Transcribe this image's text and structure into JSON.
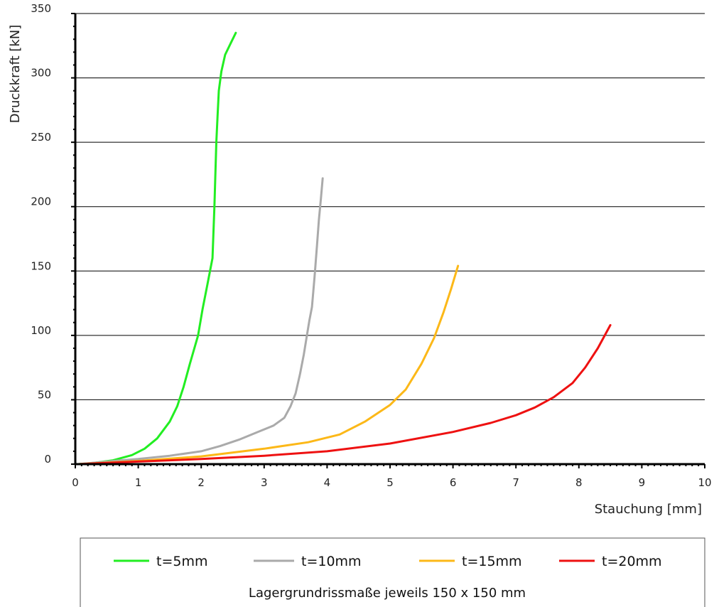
{
  "chart_data": {
    "type": "line",
    "xlabel": "Stauchung [mm]",
    "ylabel": "Druckkraft [kN]",
    "xlim": [
      0,
      10
    ],
    "ylim": [
      0,
      350
    ],
    "x_ticks": [
      "0",
      "1",
      "2",
      "3",
      "4",
      "5",
      "6",
      "7",
      "8",
      "9",
      "10"
    ],
    "y_ticks": [
      "0",
      "50",
      "100",
      "150",
      "200",
      "250",
      "300",
      "350"
    ],
    "grid": "horizontal",
    "legend": {
      "position": "bottom",
      "note": "Lagergrundrissmaße jeweils 150 x 150 mm"
    },
    "series": [
      {
        "name": "t=5mm",
        "color": "#22ee22",
        "x": [
          0.05,
          0.3,
          0.6,
          0.9,
          1.1,
          1.3,
          1.5,
          1.62,
          1.72,
          1.82,
          1.95,
          2.02,
          2.1,
          2.14,
          2.18,
          2.21,
          2.24,
          2.26,
          2.28,
          2.32,
          2.38,
          2.47,
          2.55
        ],
        "y": [
          0,
          1,
          3,
          7,
          12,
          20,
          33,
          45,
          60,
          78,
          100,
          120,
          140,
          150,
          160,
          200,
          250,
          270,
          290,
          305,
          318,
          327,
          335
        ]
      },
      {
        "name": "t=10mm",
        "color": "#aaaaaa",
        "x": [
          0.05,
          0.5,
          1.0,
          1.5,
          2.0,
          2.3,
          2.6,
          2.9,
          3.15,
          3.32,
          3.42,
          3.5,
          3.57,
          3.63,
          3.68,
          3.72,
          3.76,
          3.8,
          3.84,
          3.87,
          3.9,
          3.93
        ],
        "y": [
          0,
          2,
          4,
          6.5,
          10,
          14,
          19,
          25,
          30,
          36,
          45,
          55,
          70,
          85,
          100,
          112,
          122,
          145,
          170,
          190,
          205,
          222
        ]
      },
      {
        "name": "t=15mm",
        "color": "#fcb818",
        "x": [
          0.05,
          1.0,
          2.0,
          3.0,
          3.7,
          4.2,
          4.6,
          5.0,
          5.25,
          5.5,
          5.7,
          5.85,
          5.97,
          6.08
        ],
        "y": [
          0,
          2.5,
          6,
          12,
          17,
          23,
          33,
          46,
          58,
          78,
          98,
          118,
          136,
          154
        ]
      },
      {
        "name": "t=20mm",
        "color": "#ee1111",
        "x": [
          0.05,
          1.0,
          2.0,
          3.0,
          4.0,
          5.0,
          6.0,
          6.6,
          7.0,
          7.3,
          7.6,
          7.9,
          8.1,
          8.3,
          8.5
        ],
        "y": [
          0,
          2,
          4,
          6.5,
          10,
          16,
          25,
          32,
          38,
          44,
          52,
          63,
          75,
          90,
          108
        ]
      }
    ]
  }
}
